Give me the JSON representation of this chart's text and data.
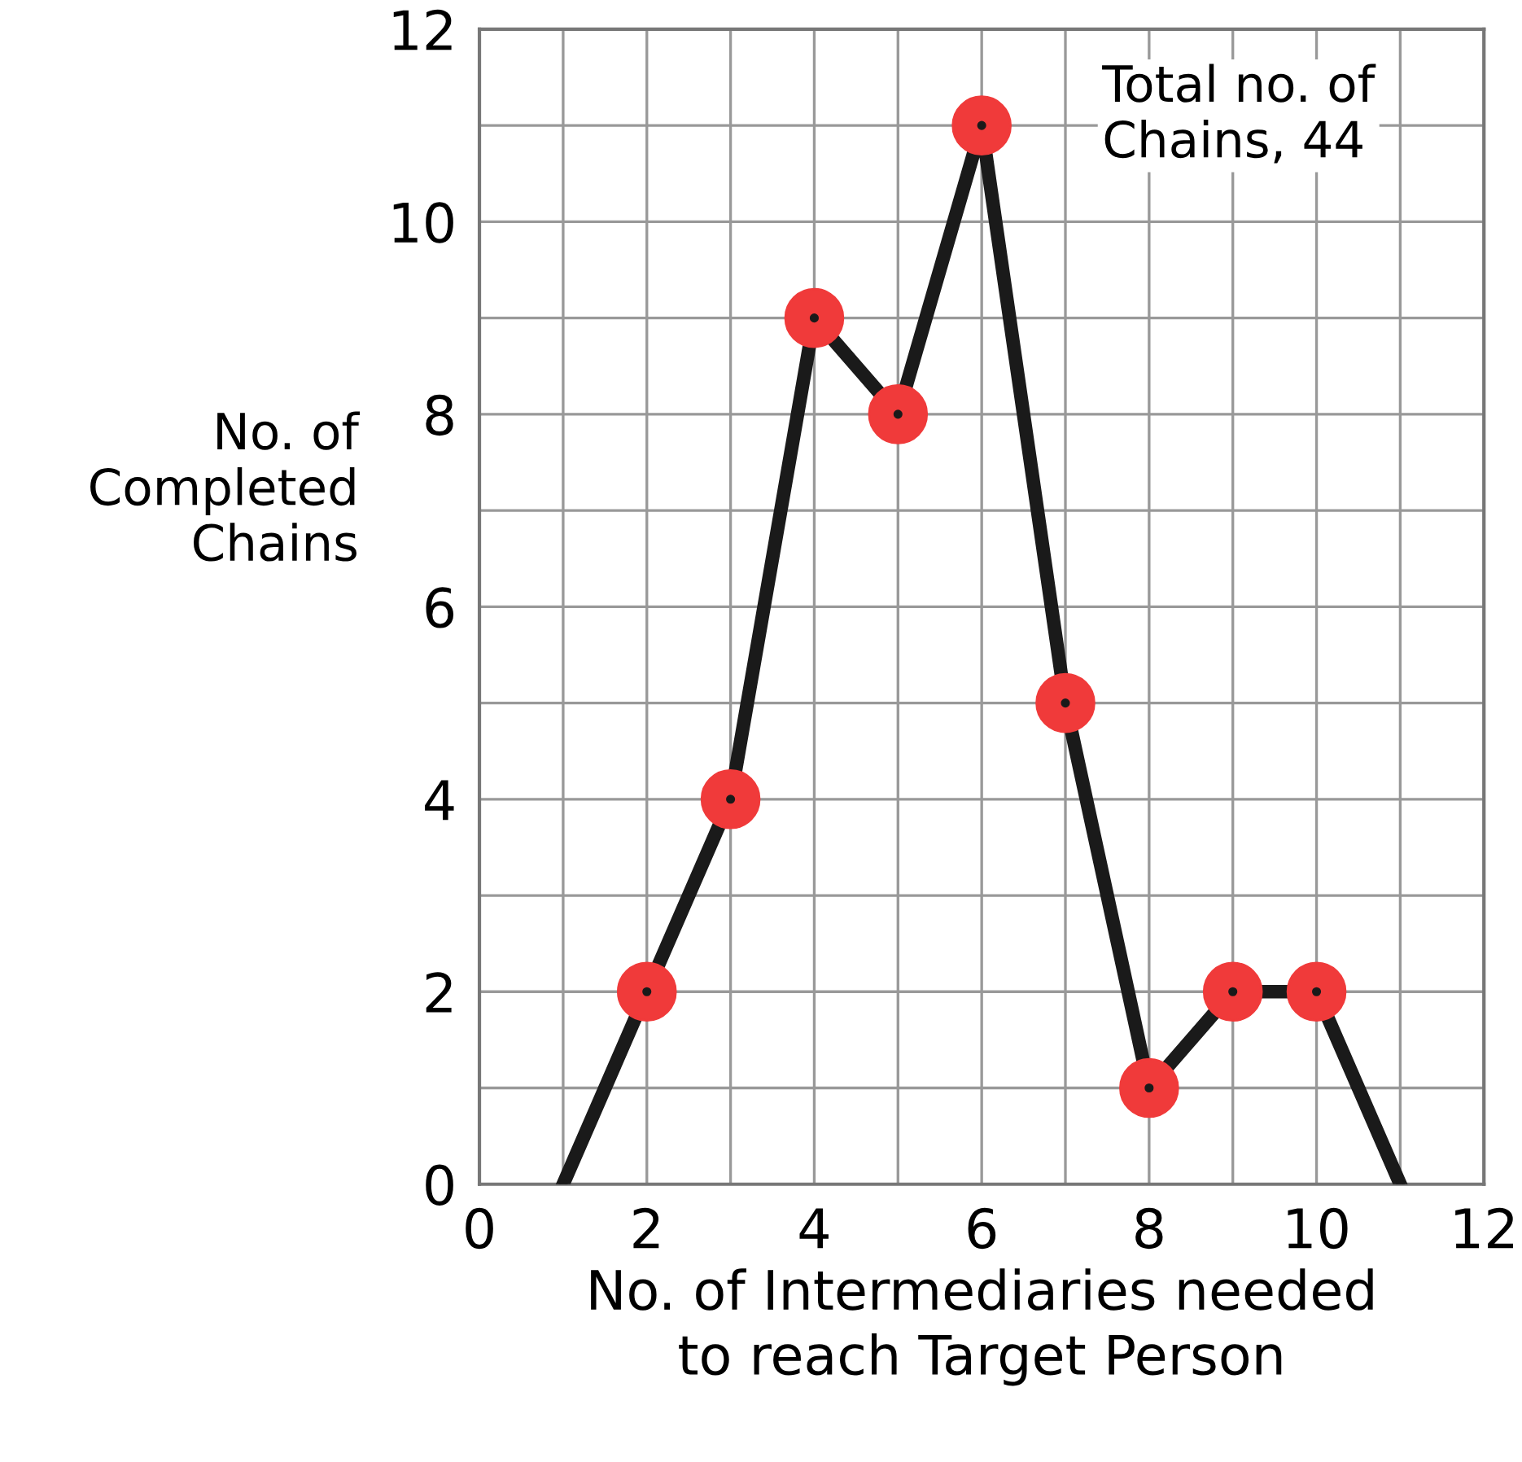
{
  "chart_data": {
    "type": "line",
    "xlabel": "No. of Intermediaries needed\nto reach Target Person",
    "ylabel": "No. of\nCompleted\nChains",
    "annotations": [
      "Total no. of\nChains, 44"
    ],
    "series": [
      {
        "color": "#1a1a1a",
        "x": [
          1,
          2,
          3,
          4,
          5,
          6,
          7,
          8,
          9,
          10,
          11
        ],
        "values": [
          0,
          2,
          4,
          9,
          8,
          11,
          5,
          1,
          2,
          2,
          0
        ],
        "marker": "circle"
      },
      {
        "type": "scatter",
        "color": "#f03a3a",
        "x": [
          2,
          3,
          4,
          5,
          6,
          7,
          8,
          9,
          10
        ],
        "values": [
          2,
          4,
          9,
          8,
          11,
          5,
          1,
          2,
          2
        ],
        "marker": "circle"
      }
    ],
    "xlim": [
      0,
      12
    ],
    "ylim": [
      0,
      12
    ],
    "xticks": [
      0,
      {
        "value": 1,
        "label": null
      },
      2,
      {
        "value": 3,
        "label": null
      },
      4,
      {
        "value": 5,
        "label": null
      },
      6,
      {
        "value": 7,
        "label": null
      },
      8,
      {
        "value": 9,
        "label": null
      },
      10,
      {
        "value": 11,
        "label": null
      },
      12
    ],
    "yticks": [
      0,
      {
        "value": 1,
        "label": null
      },
      2,
      {
        "value": 3,
        "label": null
      },
      4,
      {
        "value": 5,
        "label": null
      },
      6,
      {
        "value": 7,
        "label": null
      },
      8,
      {
        "value": 9,
        "label": null
      },
      10,
      {
        "value": 11,
        "label": null
      },
      12
    ],
    "grid": true,
    "legend": false
  }
}
